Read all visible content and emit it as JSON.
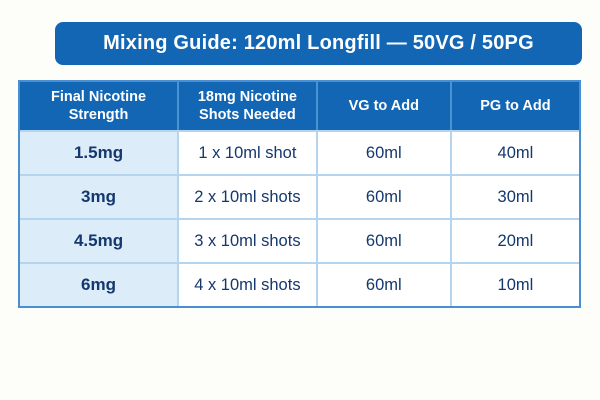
{
  "banner": {
    "title": "Mixing Guide: 120ml Longfill — 50VG / 50PG"
  },
  "chart_data": {
    "type": "table",
    "title": "Mixing Guide: 120ml Longfill — 50VG / 50PG",
    "columns": [
      "Final Nicotine Strength",
      "18mg Nicotine Shots Needed",
      "VG to Add",
      "PG to Add"
    ],
    "rows": [
      [
        "1.5mg",
        "1 x 10ml shot",
        "60ml",
        "40ml"
      ],
      [
        "3mg",
        "2 x 10ml shots",
        "60ml",
        "30ml"
      ],
      [
        "4.5mg",
        "3 x 10ml shots",
        "60ml",
        "20ml"
      ],
      [
        "6mg",
        "4 x 10ml shots",
        "60ml",
        "10ml"
      ]
    ],
    "layout": {
      "header_position": "top",
      "row_header_column": 0,
      "grid": true
    }
  },
  "colors": {
    "banner_blue": "#1266b4",
    "header_blue": "#1266b4",
    "row_header_light_blue": "#dcecf9",
    "text_navy": "#14386e",
    "outer_border_blue": "#4a8fd1",
    "grid_line_blue": "#b5d5ee",
    "header_text": "#ffffff",
    "background": "#fdfdfa"
  }
}
